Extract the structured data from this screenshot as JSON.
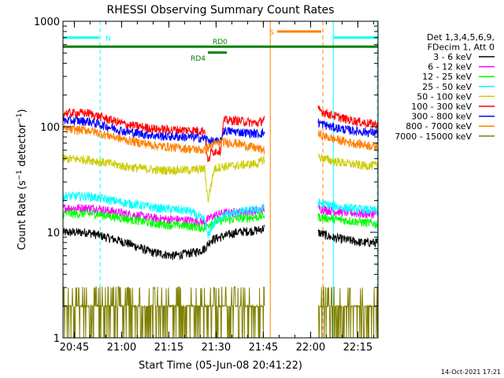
{
  "chart_data": {
    "type": "line",
    "title": "RHESSI Observing Summary Count Rates",
    "xlabel": "Start Time (05-Jun-08 20:41:22)",
    "ylabel": "Count Rate (s⁻¹ detector⁻¹)",
    "yscale": "log",
    "ylim": [
      1,
      1000
    ],
    "xlim_minutes": [
      0,
      100
    ],
    "x_ticks": [
      {
        "label": "20:45",
        "minute": 3.6
      },
      {
        "label": "21:00",
        "minute": 18.6
      },
      {
        "label": "21:15",
        "minute": 33.6
      },
      {
        "label": "21:30",
        "minute": 48.6
      },
      {
        "label": "21:45",
        "minute": 63.6
      },
      {
        "label": "22:00",
        "minute": 78.6
      },
      {
        "label": "22:15",
        "minute": 93.6
      }
    ],
    "y_ticks": [
      {
        "label": "1",
        "value": 1
      },
      {
        "label": "10",
        "value": 10
      },
      {
        "label": "100",
        "value": 100
      },
      {
        "label": "1000",
        "value": 1000
      }
    ],
    "legend": {
      "header": [
        "Det 1,3,4,5,6,9,",
        "FDecim 1, Att 0"
      ],
      "entries": [
        {
          "label": "3 - 6 keV",
          "color": "#000000"
        },
        {
          "label": "6 - 12 keV",
          "color": "#ff00ff"
        },
        {
          "label": "12 - 25 keV",
          "color": "#00ff00"
        },
        {
          "label": "25 - 50 keV",
          "color": "#00ffff"
        },
        {
          "label": "50 - 100 keV",
          "color": "#cccc00"
        },
        {
          "label": "100 - 300 keV",
          "color": "#ff0000"
        },
        {
          "label": "300 - 800 keV",
          "color": "#0000ff"
        },
        {
          "label": "800 - 7000 keV",
          "color": "#ff8000"
        },
        {
          "label": "7000 - 15000 keV",
          "color": "#808000"
        }
      ]
    },
    "gaps_minutes": [
      [
        64.6,
        80.6
      ]
    ],
    "series": [
      {
        "name": "3 - 6 keV",
        "color": "#000000",
        "segments": [
          {
            "x": [
              0,
              8,
              20,
              28,
              35,
              42,
              45,
              47,
              50,
              55,
              62,
              64
            ],
            "y": [
              10,
              10,
              8,
              6.5,
              6,
              6.5,
              7,
              8.5,
              9,
              10,
              10.5,
              11
            ]
          },
          {
            "x": [
              81,
              85,
              90,
              95,
              100
            ],
            "y": [
              10,
              9,
              8.5,
              8,
              8
            ]
          }
        ]
      },
      {
        "name": "6 - 12 keV",
        "color": "#ff00ff",
        "segments": [
          {
            "x": [
              0,
              10,
              20,
              30,
              40,
              45,
              47,
              50,
              55,
              62,
              64
            ],
            "y": [
              17,
              17,
              15,
              13.5,
              13,
              12.5,
              14,
              15,
              15.5,
              16,
              17
            ]
          },
          {
            "x": [
              81,
              85,
              90,
              95,
              100
            ],
            "y": [
              17,
              16,
              15.5,
              15,
              15
            ]
          }
        ]
      },
      {
        "name": "12 - 25 keV",
        "color": "#00ff00",
        "segments": [
          {
            "x": [
              0,
              10,
              20,
              30,
              40,
              45,
              47,
              50,
              55,
              62,
              64
            ],
            "y": [
              15,
              15,
              13.5,
              12,
              11.5,
              11,
              12.5,
              13,
              13.5,
              14,
              14.5
            ]
          },
          {
            "x": [
              81,
              85,
              90,
              95,
              100
            ],
            "y": [
              14,
              13.5,
              13,
              12.5,
              12
            ]
          }
        ]
      },
      {
        "name": "25 - 50 keV",
        "color": "#00ffff",
        "segments": [
          {
            "x": [
              0,
              8,
              20,
              30,
              40,
              45,
              46,
              47,
              50,
              55,
              62,
              64
            ],
            "y": [
              22,
              22,
              19,
              17,
              16,
              13,
              9,
              11,
              14,
              15.5,
              16.5,
              17
            ]
          },
          {
            "x": [
              81,
              85,
              90,
              95,
              100
            ],
            "y": [
              19,
              18,
              17,
              16.5,
              16
            ]
          }
        ]
      },
      {
        "name": "50 - 100 keV",
        "color": "#cccc00",
        "segments": [
          {
            "x": [
              0,
              8,
              20,
              30,
              40,
              45,
              46,
              48,
              50,
              51,
              55,
              62,
              64
            ],
            "y": [
              50,
              49,
              42,
              39,
              39,
              40,
              20,
              40,
              42,
              42,
              43,
              45,
              50
            ]
          },
          {
            "x": [
              81,
              85,
              90,
              95,
              100
            ],
            "y": [
              52,
              48,
              45,
              43,
              43
            ]
          }
        ]
      },
      {
        "name": "100 - 300 keV",
        "color": "#ff0000",
        "segments": [
          {
            "x": [
              0,
              8,
              20,
              30,
              40,
              45,
              46,
              47,
              50,
              51,
              55,
              62,
              64
            ],
            "y": [
              135,
              135,
              105,
              95,
              93,
              92,
              45,
              58,
              60,
              115,
              115,
              108,
              120
            ]
          },
          {
            "x": [
              81,
              85,
              90,
              95,
              100
            ],
            "y": [
              145,
              130,
              118,
              110,
              105
            ]
          }
        ]
      },
      {
        "name": "300 - 800 keV",
        "color": "#0000ff",
        "segments": [
          {
            "x": [
              0,
              8,
              20,
              30,
              40,
              45,
              47,
              50,
              51,
              55,
              62,
              64
            ],
            "y": [
              115,
              113,
              90,
              82,
              80,
              78,
              73,
              72,
              92,
              90,
              86,
              88
            ]
          },
          {
            "x": [
              81,
              85,
              90,
              95,
              100
            ],
            "y": [
              110,
              100,
              94,
              90,
              88
            ]
          }
        ]
      },
      {
        "name": "800 - 7000 keV",
        "color": "#ff8000",
        "segments": [
          {
            "x": [
              0,
              8,
              20,
              30,
              40,
              45,
              47,
              50,
              55,
              62,
              64
            ],
            "y": [
              95,
              93,
              75,
              66,
              62,
              60,
              67,
              72,
              70,
              62,
              60
            ]
          },
          {
            "x": [
              81,
              85,
              90,
              95,
              100
            ],
            "y": [
              85,
              78,
              72,
              68,
              65
            ]
          }
        ]
      },
      {
        "name": "7000 - 15000 keV",
        "color": "#808000",
        "segments": [
          {
            "x": [
              0,
              20,
              40,
              45,
              47,
              50,
              55,
              62,
              64
            ],
            "y": [
              2,
              2,
              2,
              2.2,
              2.5,
              3,
              3.5,
              2.5,
              2
            ]
          },
          {
            "x": [
              81,
              90,
              100
            ],
            "y": [
              2,
              2,
              2
            ]
          }
        ]
      }
    ],
    "annotations": {
      "bars": [
        {
          "label": "N",
          "color": "#00ffff",
          "ranges": [
            [
              0,
              11.5
            ],
            [
              86,
              100
            ]
          ],
          "value": 700
        },
        {
          "label": "S",
          "color": "#ff8000",
          "ranges": [
            [
              68,
              82
            ]
          ],
          "value": 800
        },
        {
          "label": "RD0",
          "color": "#008000",
          "ranges": [
            [
              0,
              100
            ]
          ],
          "value": 575
        },
        {
          "label": "RD4",
          "color": "#008000",
          "ranges": [
            [
              46,
              52
            ]
          ],
          "value": 505
        }
      ],
      "vlines": [
        {
          "minute": 0,
          "color": "#00ffff",
          "style": "solid"
        },
        {
          "minute": 11.8,
          "color": "#00ffff",
          "style": "dashed"
        },
        {
          "minute": 65.8,
          "color": "#ff8000",
          "style": "solid"
        },
        {
          "minute": 82.5,
          "color": "#ff8000",
          "style": "dashed"
        },
        {
          "minute": 85.8,
          "color": "#00ffff",
          "style": "solid"
        },
        {
          "minute": 99.8,
          "color": "#00ffff",
          "style": "dashed"
        }
      ]
    },
    "timestamp": "14-Oct-2021 17:21"
  }
}
